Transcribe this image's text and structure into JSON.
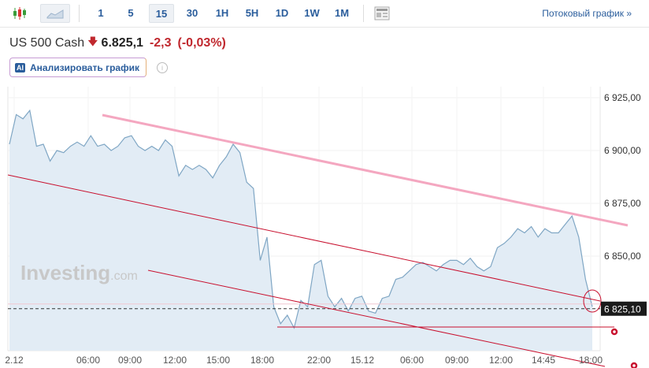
{
  "toolbar": {
    "icons": [
      "candlestick-icon",
      "area-chart-icon"
    ],
    "intervals": [
      "1",
      "5",
      "15",
      "30",
      "1H",
      "5H",
      "1D",
      "1W",
      "1M"
    ],
    "selected": "15",
    "stream_link": "Потоковый график »"
  },
  "header": {
    "name": "US 500 Cash",
    "price": "6.825,1",
    "change": "-2,3",
    "change_pct": "(-0,03%)",
    "direction": "down"
  },
  "ai_button": {
    "icon_text": "AI",
    "label": "Анализировать график"
  },
  "info_icon": "i",
  "colors": {
    "line": "#7fa6c4",
    "fill": "#e2ecf5",
    "down": "#c0282e",
    "trend_pink": "#f4a7c0",
    "trend_red": "#c8102e"
  },
  "watermark": {
    "brand": "Investing",
    ".com": ".com"
  },
  "chart_data": {
    "type": "area",
    "y_ticks": [
      "6 925,00",
      "6 900,00",
      "6 875,00",
      "6 850,00"
    ],
    "y_tick_values": [
      6925,
      6900,
      6875,
      6850
    ],
    "ylim": [
      6810,
      6930
    ],
    "x_ticks": [
      "2.12",
      "06:00",
      "09:00",
      "12:00",
      "15:00",
      "18:00",
      "22:00",
      "15.12",
      "06:00",
      "09:00",
      "12:00",
      "14:45",
      "18:00"
    ],
    "last_price_label": "6 825,10",
    "last_price": 6825.1,
    "values": [
      6903,
      6917,
      6915,
      6919,
      6902,
      6903,
      6895,
      6900,
      6899,
      6902,
      6904,
      6902,
      6907,
      6902,
      6903,
      6900,
      6902,
      6906,
      6907,
      6902,
      6900,
      6902,
      6900,
      6905,
      6902,
      6888,
      6893,
      6891,
      6893,
      6891,
      6887,
      6893,
      6897,
      6903,
      6899,
      6885,
      6882,
      6848,
      6859,
      6826,
      6818,
      6822,
      6816,
      6829,
      6826,
      6846,
      6848,
      6831,
      6826,
      6830,
      6824,
      6830,
      6831,
      6824,
      6823,
      6830,
      6831,
      6839,
      6840,
      6843,
      6846,
      6847,
      6845,
      6843,
      6846,
      6848,
      6848,
      6846,
      6849,
      6845,
      6843,
      6845,
      6854,
      6856,
      6859,
      6863,
      6861,
      6864,
      6859,
      6863,
      6861,
      6861,
      6865,
      6869,
      6859,
      6839,
      6826
    ]
  }
}
